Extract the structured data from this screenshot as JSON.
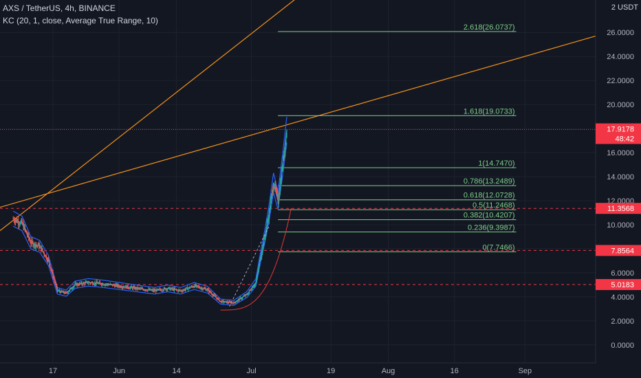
{
  "header": {
    "symbol_line": "AXS / TetherUS, 4h, BINANCE",
    "indicator_line": "KC (20, 1, close, Average True Range, 10)",
    "currency": "USDT",
    "currency_prefix": "2"
  },
  "colors": {
    "background": "#131722",
    "fib_line": "#7ecf8a",
    "trend_line": "#f7931a",
    "dashed_level": "#f23645",
    "keltner": "#2962ff",
    "bull": "#26a69a",
    "bear": "#ef5350",
    "price_tag": "#f23645",
    "curve": "#e53935"
  },
  "price_tag": {
    "price": "17.9178",
    "countdown": "48:42"
  },
  "chart_data": {
    "type": "candlestick",
    "x_ticks": [
      "17",
      "Jun",
      "14",
      "Jul",
      "19",
      "Aug",
      "16",
      "Sep"
    ],
    "y_ticks": [
      "0.0000",
      "2.0000",
      "4.0000",
      "6.0000",
      "8.0000",
      "10.0000",
      "12.0000",
      "14.0000",
      "16.0000",
      "18.0000",
      "20.0000",
      "22.0000",
      "24.0000",
      "26.0000"
    ],
    "ylim": [
      -1.5,
      28.7
    ],
    "last_price": 17.9178,
    "fib_levels": [
      {
        "label": "2.618(26.0737)",
        "value": 26.0737
      },
      {
        "label": "1.618(19.0733)",
        "value": 19.0733
      },
      {
        "label": "1(14.7470)",
        "value": 14.747
      },
      {
        "label": "0.786(13.2489)",
        "value": 13.2489
      },
      {
        "label": "0.618(12.0728)",
        "value": 12.0728
      },
      {
        "label": "0.5(11.2468)",
        "value": 11.2468
      },
      {
        "label": "0.382(10.4207)",
        "value": 10.4207
      },
      {
        "label": "0.236(9.3987)",
        "value": 9.3987
      },
      {
        "label": "0(7.7466)",
        "value": 7.7466
      }
    ],
    "horizontal_levels": [
      {
        "label": "11.3568",
        "value": 11.3568
      },
      {
        "label": "7.8564",
        "value": 7.8564
      },
      {
        "label": "5.0183",
        "value": 5.0183
      }
    ],
    "price_path": [
      {
        "date": "May 8",
        "value": 10.5
      },
      {
        "date": "May 10",
        "value": 10.1
      },
      {
        "date": "May 12",
        "value": 8.5
      },
      {
        "date": "May 14",
        "value": 8.2
      },
      {
        "date": "May 16",
        "value": 7.0
      },
      {
        "date": "May 18",
        "value": 4.5
      },
      {
        "date": "May 20",
        "value": 4.3
      },
      {
        "date": "May 22",
        "value": 5.0
      },
      {
        "date": "May 25",
        "value": 5.2
      },
      {
        "date": "May 28",
        "value": 5.1
      },
      {
        "date": "Jun 1",
        "value": 4.9
      },
      {
        "date": "Jun 5",
        "value": 4.7
      },
      {
        "date": "Jun 9",
        "value": 4.5
      },
      {
        "date": "Jun 12",
        "value": 4.7
      },
      {
        "date": "Jun 15",
        "value": 4.5
      },
      {
        "date": "Jun 18",
        "value": 4.9
      },
      {
        "date": "Jun 21",
        "value": 4.6
      },
      {
        "date": "Jun 24",
        "value": 3.6
      },
      {
        "date": "Jun 27",
        "value": 3.5
      },
      {
        "date": "Jun 30",
        "value": 4.2
      },
      {
        "date": "Jul 2",
        "value": 5.2
      },
      {
        "date": "Jul 3",
        "value": 7.2
      },
      {
        "date": "Jul 4",
        "value": 9.0
      },
      {
        "date": "Jul 5",
        "value": 11.0
      },
      {
        "date": "Jul 6",
        "value": 13.5
      },
      {
        "date": "Jul 7",
        "value": 12.0
      },
      {
        "date": "Jul 8",
        "value": 14.8
      },
      {
        "date": "Jul 9",
        "value": 17.9
      }
    ]
  }
}
